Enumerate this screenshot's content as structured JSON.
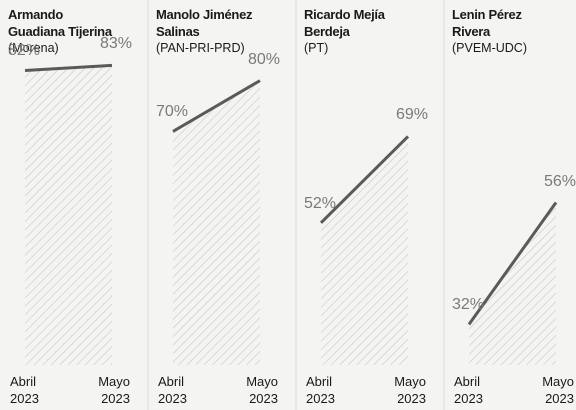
{
  "chart_data": [
    {
      "type": "line",
      "title": "Armando\nGuadiana Tijerina",
      "subtitle": "(Morena)",
      "categories": [
        "Abril\n2023",
        "Mayo\n2023"
      ],
      "values": [
        82,
        83
      ],
      "value_labels": [
        "82%",
        "83%"
      ],
      "ylim": [
        24,
        88
      ],
      "color": "#5a5a5a"
    },
    {
      "type": "line",
      "title": "Manolo Jiménez\nSalinas",
      "subtitle": "(PAN-PRI-PRD)",
      "categories": [
        "Abril\n2023",
        "Mayo\n2023"
      ],
      "values": [
        70,
        80
      ],
      "value_labels": [
        "70%",
        "80%"
      ],
      "ylim": [
        24,
        88
      ],
      "color": "#5a5a5a"
    },
    {
      "type": "line",
      "title": "Ricardo Mejía\nBerdeja",
      "subtitle": "(PT)",
      "categories": [
        "Abril\n2023",
        "Mayo\n2023"
      ],
      "values": [
        52,
        69
      ],
      "value_labels": [
        "52%",
        "69%"
      ],
      "ylim": [
        24,
        88
      ],
      "color": "#5a5a5a"
    },
    {
      "type": "line",
      "title": "Lenin Pérez\nRivera",
      "subtitle": "(PVEM-UDC)",
      "categories": [
        "Abril\n2023",
        "Mayo\n2023"
      ],
      "values": [
        32,
        56
      ],
      "value_labels": [
        "32%",
        "56%"
      ],
      "ylim": [
        24,
        88
      ],
      "color": "#5a5a5a"
    }
  ]
}
